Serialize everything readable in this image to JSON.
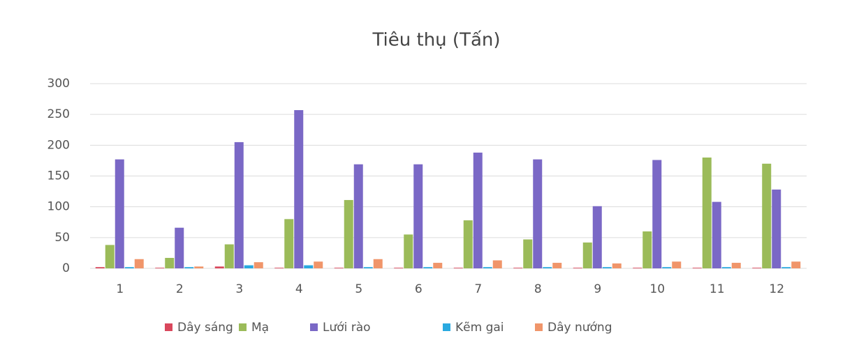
{
  "chart_data": {
    "type": "bar",
    "title": "Tiêu thụ (Tấn)",
    "categories": [
      "1",
      "2",
      "3",
      "4",
      "5",
      "6",
      "7",
      "8",
      "9",
      "10",
      "11",
      "12"
    ],
    "series": [
      {
        "name": "Dây sáng",
        "color": "#d9475c",
        "values": [
          2,
          1,
          3,
          1,
          1,
          1,
          1,
          1,
          1,
          1,
          1,
          1
        ]
      },
      {
        "name": "Mạ",
        "color": "#9bbb59",
        "values": [
          38,
          17,
          39,
          80,
          111,
          55,
          78,
          47,
          42,
          60,
          180,
          170
        ]
      },
      {
        "name": "Lưới rào",
        "color": "#7a68c6",
        "values": [
          177,
          66,
          205,
          257,
          169,
          169,
          188,
          177,
          101,
          176,
          108,
          128
        ]
      },
      {
        "name": "Kẽm gai",
        "color": "#2aa9e0",
        "values": [
          2,
          2,
          5,
          5,
          2,
          2,
          2,
          2,
          2,
          2,
          2,
          2
        ]
      },
      {
        "name": "Dây nướng",
        "color": "#f0956a",
        "values": [
          15,
          3,
          10,
          11,
          15,
          9,
          13,
          9,
          8,
          11,
          9,
          11
        ]
      }
    ],
    "ylim": [
      0,
      300
    ],
    "yticks": [
      0,
      50,
      100,
      150,
      200,
      250,
      300
    ],
    "grid": true,
    "legend": "bottom"
  }
}
